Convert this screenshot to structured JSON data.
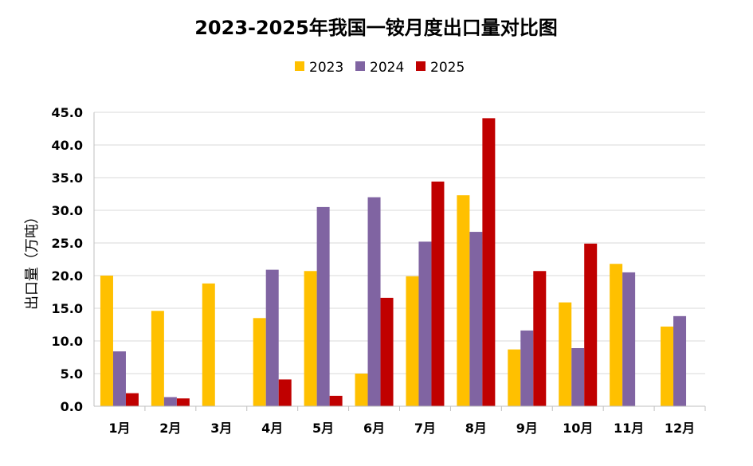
{
  "chart_data": {
    "type": "bar",
    "title": "2023-2025年我国一铵月度出口量对比图",
    "xlabel": "",
    "ylabel": "出口量（万吨）",
    "ylim": [
      0,
      45
    ],
    "yticks": [
      "0.0",
      "5.0",
      "10.0",
      "15.0",
      "20.0",
      "25.0",
      "30.0",
      "35.0",
      "40.0",
      "45.0"
    ],
    "grid": true,
    "legend_position": "top-center",
    "categories": [
      "1月",
      "2月",
      "3月",
      "4月",
      "5月",
      "6月",
      "7月",
      "8月",
      "9月",
      "10月",
      "11月",
      "12月"
    ],
    "series": [
      {
        "name": "2023",
        "color": "#FFC000",
        "values": [
          20.0,
          14.6,
          18.8,
          13.5,
          20.7,
          5.0,
          19.9,
          32.3,
          8.7,
          15.9,
          21.8,
          12.2
        ]
      },
      {
        "name": "2024",
        "color": "#8064A2",
        "values": [
          8.4,
          1.4,
          null,
          20.9,
          30.5,
          32.0,
          25.2,
          26.7,
          11.6,
          8.9,
          20.5,
          13.8
        ]
      },
      {
        "name": "2025",
        "color": "#C00000",
        "values": [
          2.0,
          1.2,
          null,
          4.1,
          1.6,
          16.6,
          34.4,
          44.1,
          20.7,
          24.9,
          null,
          null
        ]
      }
    ]
  }
}
